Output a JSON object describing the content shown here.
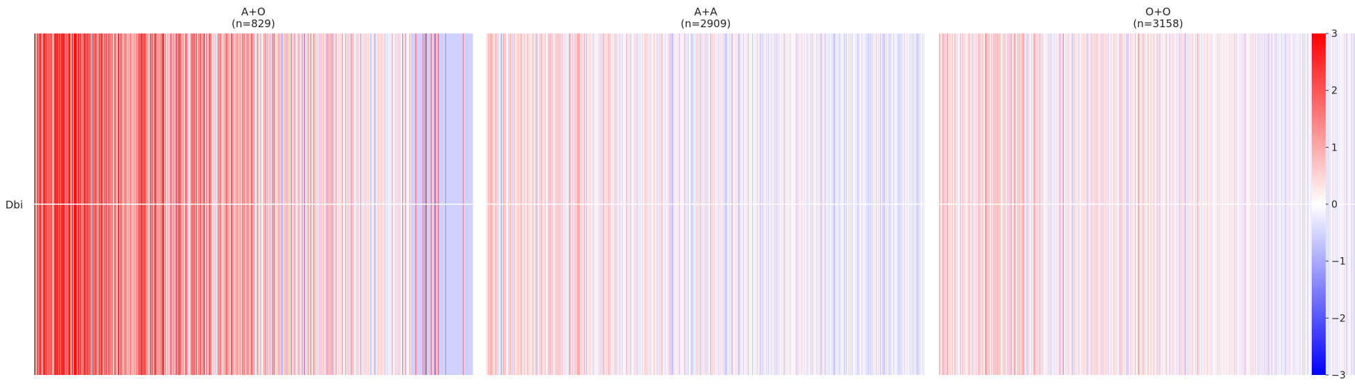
{
  "chart_data": {
    "type": "heatmap",
    "row_label": "Dbi",
    "colormap": {
      "name": "bwr",
      "vmin": -3,
      "vmax": 3,
      "low_color": "#0000ff",
      "mid_color": "#ffffff",
      "high_color": "#ff0000"
    },
    "colorbar_ticks": [
      3,
      2,
      1,
      0,
      -1,
      -2,
      -3
    ],
    "panels": [
      {
        "title": "A+O",
        "subtitle": "(n=829)",
        "n": 829,
        "trend": {
          "start": 2.0,
          "end": -0.3
        },
        "noise": 0.95,
        "seed": 17
      },
      {
        "title": "A+A",
        "subtitle": "(n=2909)",
        "n": 2909,
        "trend": {
          "start": 0.35,
          "end": -0.28
        },
        "noise": 0.55,
        "seed": 29
      },
      {
        "title": "O+O",
        "subtitle": "(n=3158)",
        "n": 3158,
        "trend": {
          "start": 0.45,
          "end": -0.22
        },
        "noise": 0.55,
        "seed": 43
      }
    ]
  }
}
